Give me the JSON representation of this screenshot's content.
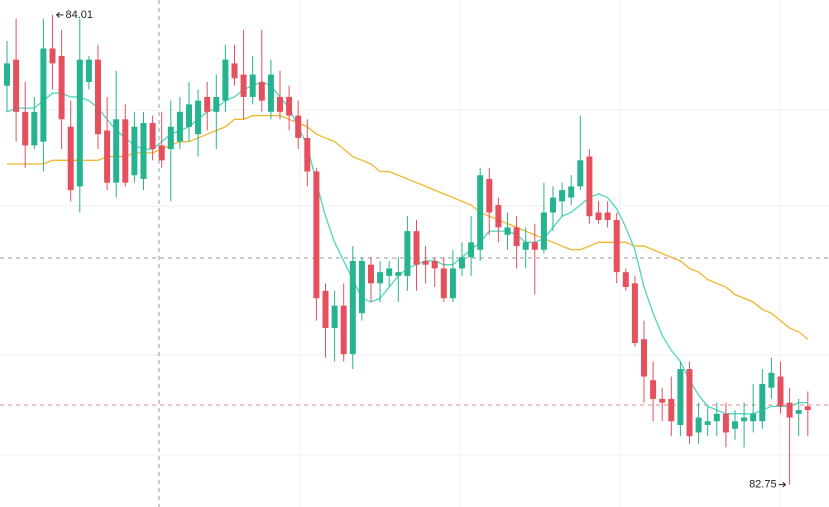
{
  "chart_data": {
    "type": "candlestick",
    "up_color": "#26b38f",
    "down_color": "#e5505f",
    "ylim": [
      82.69,
      84.05
    ],
    "open": [
      83.82,
      83.89,
      83.75,
      83.66,
      83.67,
      83.92,
      83.9,
      83.71,
      83.55,
      83.83,
      83.89,
      83.7,
      83.56,
      83.73,
      83.58,
      83.57,
      83.72,
      83.66,
      83.65,
      83.67,
      83.71,
      83.69,
      83.79,
      83.75,
      83.78,
      83.88,
      83.85,
      83.79,
      83.83,
      83.75,
      83.79,
      83.79,
      83.74,
      83.68,
      83.59,
      83.27,
      83.17,
      83.23,
      83.1,
      83.21,
      83.34,
      83.29,
      83.31,
      83.31,
      83.31,
      83.43,
      83.35,
      83.35,
      83.33,
      83.25,
      83.33,
      83.36,
      83.38,
      83.57,
      83.5,
      83.42,
      83.44,
      83.38,
      83.4,
      83.38,
      83.48,
      83.51,
      83.52,
      83.55,
      83.63,
      83.48,
      83.48,
      83.46,
      83.32,
      83.29,
      83.14,
      83.03,
      82.98,
      82.98,
      82.91,
      83.06,
      82.89,
      82.91,
      82.92,
      82.94,
      82.9,
      82.92,
      82.92,
      82.92,
      83.01,
      83.04,
      82.97,
      82.94,
      82.96
    ],
    "high": [
      83.94,
      84.0,
      83.83,
      83.79,
      84.0,
      84.01,
      83.97,
      83.78,
      84.0,
      83.9,
      83.93,
      83.79,
      83.86,
      83.77,
      83.75,
      83.75,
      83.74,
      83.75,
      83.78,
      83.79,
      83.83,
      83.81,
      83.83,
      83.85,
      83.93,
      83.93,
      83.97,
      83.9,
      83.97,
      83.89,
      83.86,
      83.82,
      83.78,
      83.73,
      83.6,
      83.29,
      83.27,
      83.29,
      83.39,
      83.36,
      83.36,
      83.35,
      83.35,
      83.36,
      83.47,
      83.46,
      83.39,
      83.36,
      83.36,
      83.38,
      83.4,
      83.47,
      83.6,
      83.6,
      83.52,
      83.48,
      83.47,
      83.44,
      83.45,
      83.56,
      83.55,
      83.56,
      83.58,
      83.74,
      83.65,
      83.51,
      83.51,
      83.48,
      83.33,
      83.31,
      83.19,
      83.08,
      83.01,
      83.04,
      83.08,
      83.08,
      82.97,
      82.96,
      82.97,
      82.97,
      82.95,
      82.97,
      83.02,
      83.06,
      83.09,
      83.08,
      83.01,
      82.98,
      83.0
    ],
    "low": [
      83.75,
      83.67,
      83.6,
      83.65,
      83.59,
      83.81,
      83.65,
      83.51,
      83.48,
      83.81,
      83.65,
      83.54,
      83.52,
      83.55,
      83.56,
      83.54,
      83.62,
      83.6,
      83.51,
      83.65,
      83.67,
      83.63,
      83.7,
      83.65,
      83.75,
      83.82,
      83.73,
      83.77,
      83.75,
      83.73,
      83.73,
      83.7,
      83.65,
      83.55,
      83.19,
      83.09,
      83.08,
      83.08,
      83.06,
      83.19,
      83.24,
      83.24,
      83.28,
      83.24,
      83.27,
      83.27,
      83.29,
      83.28,
      83.24,
      83.24,
      83.31,
      83.31,
      83.35,
      83.42,
      83.4,
      83.38,
      83.33,
      83.33,
      83.26,
      83.37,
      83.43,
      83.47,
      83.5,
      83.54,
      83.45,
      83.45,
      83.44,
      83.29,
      83.27,
      83.12,
      82.97,
      82.92,
      82.92,
      82.88,
      82.88,
      82.86,
      82.86,
      82.88,
      82.88,
      82.85,
      82.87,
      82.85,
      82.89,
      82.9,
      82.98,
      82.94,
      82.75,
      82.88,
      82.88
    ],
    "close": [
      83.88,
      83.75,
      83.66,
      83.75,
      83.92,
      83.88,
      83.73,
      83.54,
      83.89,
      83.89,
      83.69,
      83.56,
      83.73,
      83.56,
      83.71,
      83.72,
      83.65,
      83.62,
      83.71,
      83.75,
      83.77,
      83.78,
      83.75,
      83.79,
      83.89,
      83.84,
      83.79,
      83.85,
      83.78,
      83.85,
      83.75,
      83.74,
      83.68,
      83.59,
      83.25,
      83.17,
      83.23,
      83.1,
      83.35,
      83.35,
      83.29,
      83.32,
      83.33,
      83.32,
      83.43,
      83.34,
      83.34,
      83.33,
      83.25,
      83.33,
      83.36,
      83.4,
      83.58,
      83.48,
      83.44,
      83.44,
      83.39,
      83.4,
      83.38,
      83.48,
      83.52,
      83.54,
      83.55,
      83.62,
      83.47,
      83.46,
      83.46,
      83.32,
      83.28,
      83.13,
      83.04,
      82.98,
      82.97,
      82.92,
      83.06,
      82.88,
      82.93,
      82.92,
      82.94,
      82.89,
      82.92,
      82.93,
      82.94,
      83.02,
      83.05,
      82.96,
      82.93,
      82.95,
      82.95
    ],
    "series": [
      {
        "color": "#f0b62c",
        "values": [
          83.61,
          83.61,
          83.61,
          83.61,
          83.61,
          83.62,
          83.62,
          83.62,
          83.62,
          83.62,
          83.62,
          83.63,
          83.63,
          83.63,
          83.64,
          83.64,
          83.64,
          83.65,
          83.66,
          83.67,
          83.67,
          83.68,
          83.69,
          83.7,
          83.71,
          83.73,
          83.73,
          83.74,
          83.74,
          83.74,
          83.74,
          83.73,
          83.72,
          83.71,
          83.69,
          83.68,
          83.67,
          83.65,
          83.63,
          83.62,
          83.61,
          83.59,
          83.59,
          83.58,
          83.57,
          83.56,
          83.55,
          83.54,
          83.53,
          83.52,
          83.51,
          83.5,
          83.48,
          83.47,
          83.46,
          83.45,
          83.44,
          83.43,
          83.42,
          83.41,
          83.4,
          83.39,
          83.38,
          83.38,
          83.39,
          83.4,
          83.4,
          83.4,
          83.4,
          83.39,
          83.39,
          83.38,
          83.37,
          83.36,
          83.35,
          83.33,
          83.32,
          83.3,
          83.29,
          83.28,
          83.26,
          83.25,
          83.24,
          83.22,
          83.21,
          83.19,
          83.17,
          83.16,
          83.14
        ]
      },
      {
        "color": "#4fd6bd",
        "values": [
          83.75,
          83.76,
          83.76,
          83.76,
          83.78,
          83.8,
          83.8,
          83.79,
          83.79,
          83.78,
          83.76,
          83.73,
          83.7,
          83.68,
          83.66,
          83.65,
          83.65,
          83.67,
          83.69,
          83.7,
          83.71,
          83.73,
          83.75,
          83.76,
          83.78,
          83.79,
          83.81,
          83.82,
          83.83,
          83.82,
          83.79,
          83.76,
          83.71,
          83.66,
          83.56,
          83.47,
          83.4,
          83.35,
          83.3,
          83.25,
          83.24,
          83.25,
          83.28,
          83.31,
          83.33,
          83.34,
          83.35,
          83.35,
          83.34,
          83.34,
          83.36,
          83.38,
          83.4,
          83.43,
          83.43,
          83.43,
          83.42,
          83.4,
          83.4,
          83.41,
          83.44,
          83.47,
          83.48,
          83.5,
          83.52,
          83.53,
          83.52,
          83.49,
          83.44,
          83.38,
          83.28,
          83.21,
          83.15,
          83.11,
          83.08,
          83.03,
          82.99,
          82.96,
          82.95,
          82.94,
          82.94,
          82.94,
          82.94,
          82.95,
          82.96,
          82.96,
          82.96,
          82.97,
          82.97
        ]
      }
    ],
    "annotations": [
      {
        "label": "84.01",
        "value": 84.01,
        "x": 5
      },
      {
        "label": "82.75",
        "value": 82.75,
        "x": 86
      }
    ]
  }
}
